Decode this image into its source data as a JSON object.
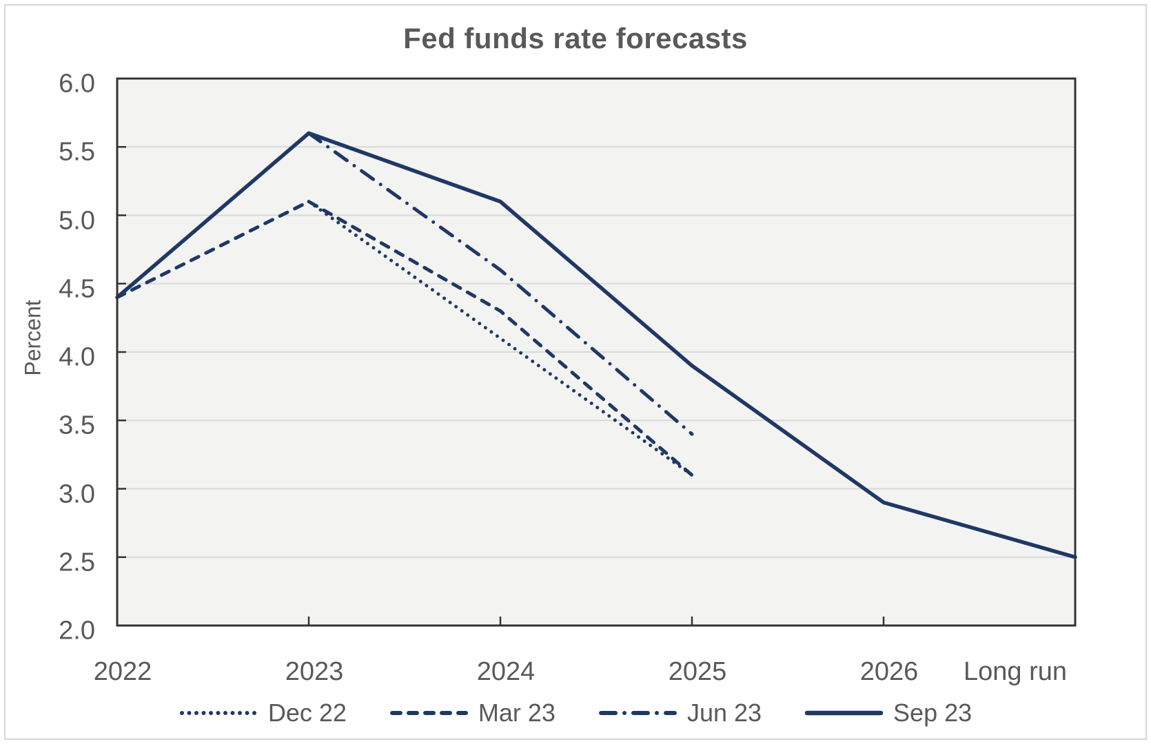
{
  "chart_data": {
    "type": "line",
    "title": "Fed funds rate forecasts",
    "ylabel": "Percent",
    "xlabel": "",
    "categories": [
      "2022",
      "2023",
      "2024",
      "2025",
      "2026",
      "Long run"
    ],
    "y_tick_labels": [
      "2.0",
      "2.5",
      "3.0",
      "3.5",
      "4.0",
      "4.5",
      "5.0",
      "5.5",
      "6.0"
    ],
    "ylim": [
      2.0,
      6.0
    ],
    "grid": "horizontal",
    "legend_position": "bottom",
    "series": [
      {
        "name": "Dec 22",
        "line_style": "dotted",
        "values": [
          null,
          5.1,
          4.1,
          3.1,
          null,
          null
        ]
      },
      {
        "name": "Mar 23",
        "line_style": "dashed",
        "values": [
          4.4,
          5.1,
          4.3,
          3.1,
          null,
          null
        ]
      },
      {
        "name": "Jun 23",
        "line_style": "dashdot",
        "values": [
          null,
          5.6,
          4.6,
          3.4,
          null,
          null
        ]
      },
      {
        "name": "Sep 23",
        "line_style": "solid",
        "values": [
          4.4,
          5.6,
          5.1,
          3.9,
          2.9,
          2.5
        ]
      }
    ],
    "colors": {
      "line": "#1f3864",
      "label_text": "#595959",
      "gridline": "#d9d9d9",
      "plot_background": "#f3f3f2",
      "plot_border": "#333333",
      "figure_border": "#d6d6d6"
    }
  }
}
